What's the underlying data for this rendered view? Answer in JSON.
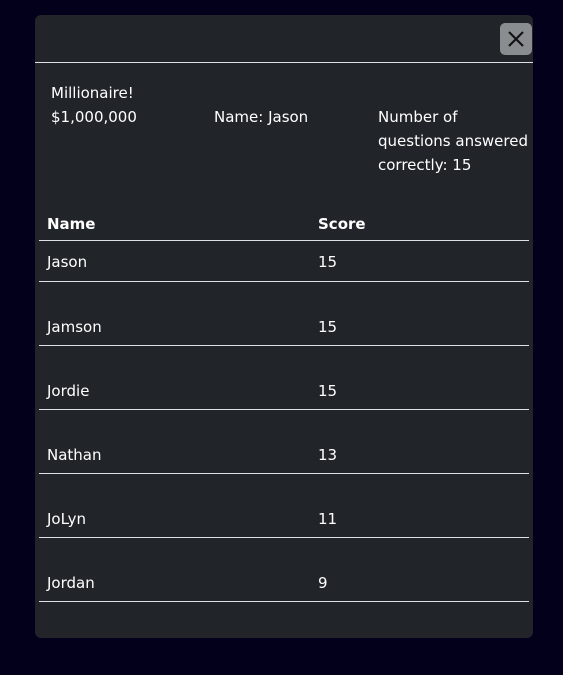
{
  "summary": {
    "title": "Millionaire!",
    "prize": "$1,000,000",
    "name_info": "Name: Jason",
    "correct_info": "Number of questions answered correctly: 15"
  },
  "table": {
    "headers": [
      "Name",
      "Score"
    ],
    "rows": [
      {
        "name": "Jason",
        "score": "15"
      },
      {
        "name": "Jamson",
        "score": "15"
      },
      {
        "name": "Jordie",
        "score": "15"
      },
      {
        "name": "Nathan",
        "score": "13"
      },
      {
        "name": "JoLyn",
        "score": "11"
      },
      {
        "name": "Jordan",
        "score": "9"
      }
    ]
  },
  "icons": {
    "close": "close-icon"
  },
  "colors": {
    "page_background": "#03001c",
    "modal_background": "#212529",
    "close_button": "#8a8d90"
  }
}
